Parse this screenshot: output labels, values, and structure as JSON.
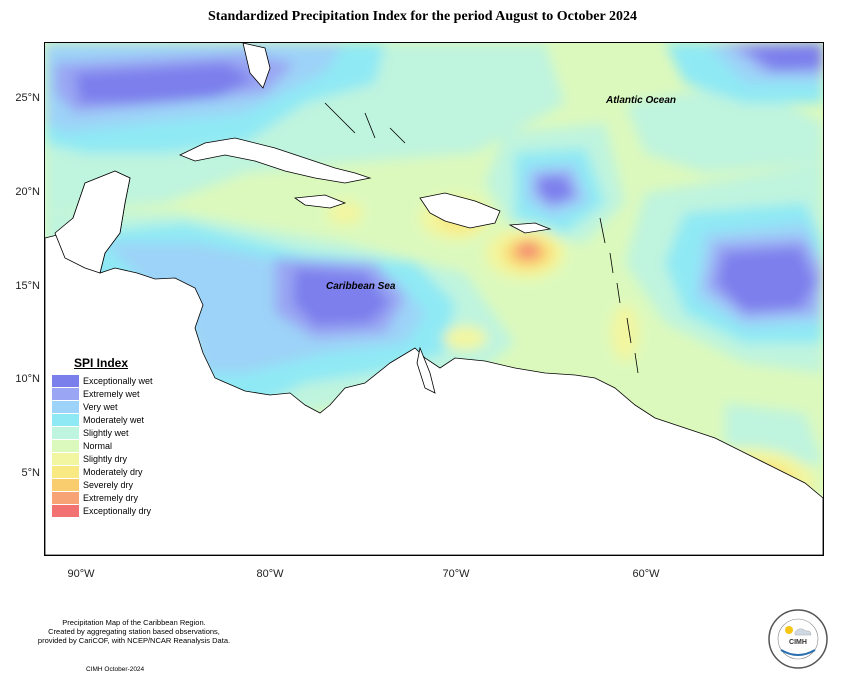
{
  "title": "Standardized Precipitation Index for the period August to October 2024",
  "map": {
    "latitude_ticks": [
      "25°N",
      "20°N",
      "15°N",
      "10°N",
      "5°N"
    ],
    "longitude_ticks": [
      "90°W",
      "80°W",
      "70°W",
      "60°W"
    ],
    "ocean_labels": {
      "atlantic": "Atlantic Ocean",
      "caribbean": "Caribbean Sea"
    }
  },
  "legend": {
    "title": "SPI Index",
    "items": [
      {
        "label": "Exceptionally wet",
        "color": "#7b7fec"
      },
      {
        "label": "Extremely wet",
        "color": "#9aa6f3"
      },
      {
        "label": "Very wet",
        "color": "#9dd3f8"
      },
      {
        "label": "Moderately wet",
        "color": "#8fe9f4"
      },
      {
        "label": "Slightly wet",
        "color": "#bff4de"
      },
      {
        "label": "Normal",
        "color": "#dcf9bd"
      },
      {
        "label": "Slightly dry",
        "color": "#f2f6a0"
      },
      {
        "label": "Moderately dry",
        "color": "#f8e983"
      },
      {
        "label": "Severely dry",
        "color": "#f9cd6e"
      },
      {
        "label": "Extremely dry",
        "color": "#f8a376"
      },
      {
        "label": "Exceptionally dry",
        "color": "#f27272"
      }
    ]
  },
  "footer": {
    "line1": "Precipitation Map of the Caribbean Region.",
    "line2": "Created by aggregating station based observations,",
    "line3": "provided by CariCOF, with NCEP/NCAR Reanalysis Data.",
    "date": "CIMH October-2024"
  },
  "logo": {
    "text": "CIMH"
  }
}
